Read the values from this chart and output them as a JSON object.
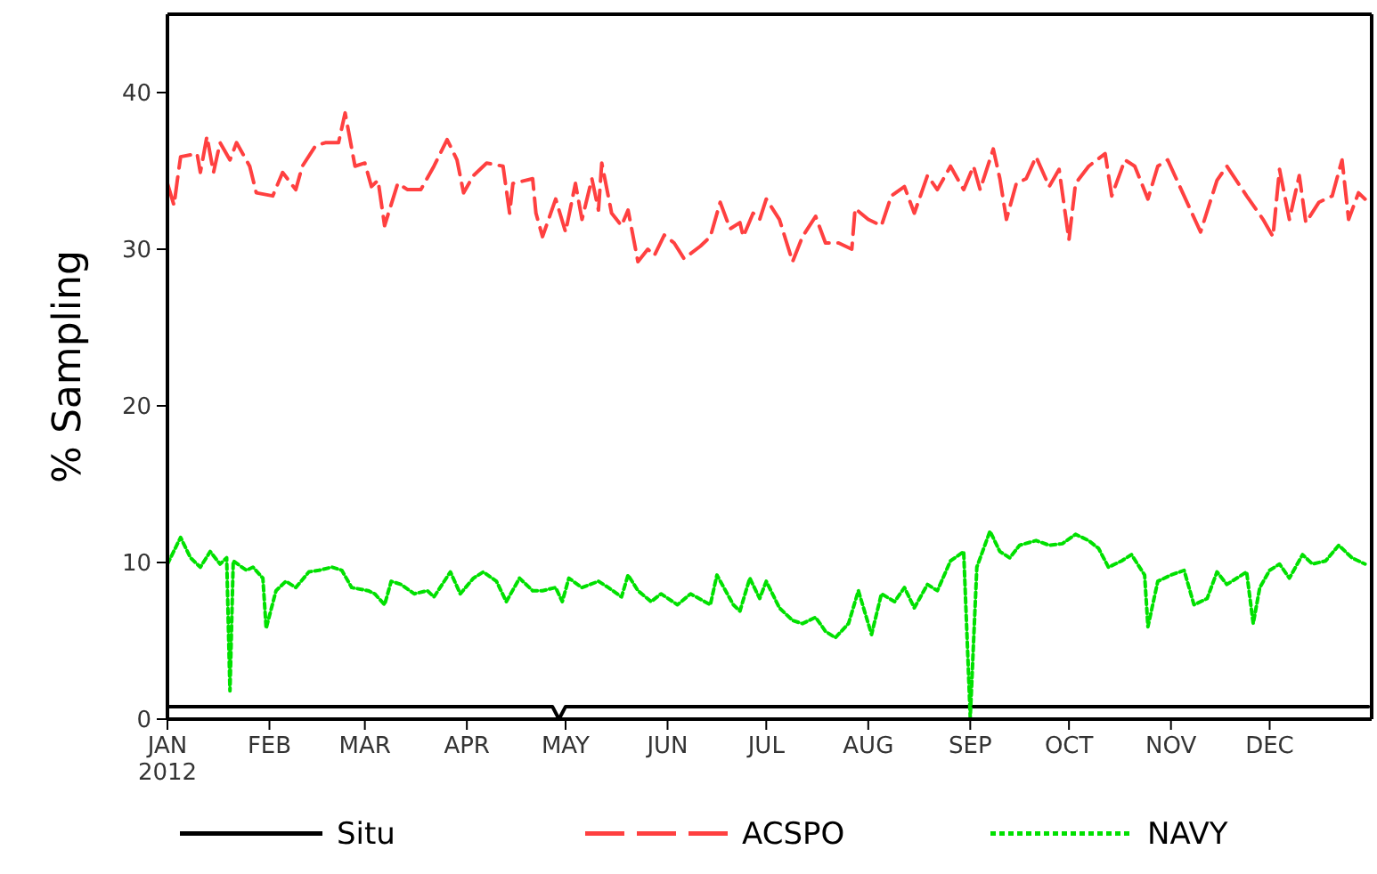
{
  "chart_data": {
    "type": "line",
    "ylabel": "% Sampling",
    "xlim": [
      "2012-01-01",
      "2013-01-01"
    ],
    "ylim": [
      0,
      45
    ],
    "yticks": [
      0,
      10,
      20,
      30,
      40
    ],
    "xticks": [
      {
        "value": "2012-01-01",
        "label": "JAN\n2012"
      },
      {
        "value": "2012-02-01",
        "label": "FEB"
      },
      {
        "value": "2012-03-01",
        "label": "MAR"
      },
      {
        "value": "2012-04-01",
        "label": "APR"
      },
      {
        "value": "2012-05-01",
        "label": "MAY"
      },
      {
        "value": "2012-06-01",
        "label": "JUN"
      },
      {
        "value": "2012-07-01",
        "label": "JUL"
      },
      {
        "value": "2012-08-01",
        "label": "AUG"
      },
      {
        "value": "2012-09-01",
        "label": "SEP"
      },
      {
        "value": "2012-10-01",
        "label": "OCT"
      },
      {
        "value": "2012-11-01",
        "label": "NOV"
      },
      {
        "value": "2012-12-01",
        "label": "DEC"
      }
    ],
    "grid": false,
    "legend": "bottom",
    "marker": "none",
    "series": [
      {
        "name": "Situ",
        "color": "#000000",
        "line_style": "solid",
        "x": [
          "2012-01-01",
          "2012-04-27",
          "2012-04-29",
          "2012-05-01",
          "2012-12-31"
        ],
        "values": [
          0.8,
          0.8,
          0,
          0.8,
          0.8
        ]
      },
      {
        "name": "ACSPO",
        "color": "#ff4040",
        "line_style": "dashed",
        "x": [
          "2012-01-01",
          "2012-01-03",
          "2012-01-04",
          "2012-01-05",
          "2012-01-10",
          "2012-01-11",
          "2012-01-13",
          "2012-01-15",
          "2012-01-17",
          "2012-01-20",
          "2012-01-22",
          "2012-01-26",
          "2012-01-28",
          "2012-02-02",
          "2012-02-05",
          "2012-02-09",
          "2012-02-11",
          "2012-02-15",
          "2012-02-18",
          "2012-02-22",
          "2012-02-24",
          "2012-02-27",
          "2012-03-01",
          "2012-03-03",
          "2012-03-05",
          "2012-03-07",
          "2012-03-11",
          "2012-03-14",
          "2012-03-18",
          "2012-03-22",
          "2012-03-26",
          "2012-03-29",
          "2012-03-31",
          "2012-04-03",
          "2012-04-07",
          "2012-04-12",
          "2012-04-14",
          "2012-04-15",
          "2012-04-21",
          "2012-04-22",
          "2012-04-24",
          "2012-04-28",
          "2012-05-01",
          "2012-05-04",
          "2012-05-06",
          "2012-05-09",
          "2012-05-11",
          "2012-05-12",
          "2012-05-15",
          "2012-05-18",
          "2012-05-20",
          "2012-05-23",
          "2012-05-26",
          "2012-05-28",
          "2012-05-31",
          "2012-06-03",
          "2012-06-06",
          "2012-06-11",
          "2012-06-14",
          "2012-06-17",
          "2012-06-20",
          "2012-06-23",
          "2012-06-24",
          "2012-06-27",
          "2012-06-29",
          "2012-07-01",
          "2012-07-05",
          "2012-07-09",
          "2012-07-12",
          "2012-07-16",
          "2012-07-19",
          "2012-07-23",
          "2012-07-27",
          "2012-07-28",
          "2012-08-01",
          "2012-08-05",
          "2012-08-08",
          "2012-08-12",
          "2012-08-15",
          "2012-08-19",
          "2012-08-22",
          "2012-08-26",
          "2012-08-30",
          "2012-09-02",
          "2012-09-04",
          "2012-09-08",
          "2012-09-10",
          "2012-09-12",
          "2012-09-15",
          "2012-09-18",
          "2012-09-21",
          "2012-09-25",
          "2012-09-28",
          "2012-10-01",
          "2012-10-03",
          "2012-10-07",
          "2012-10-12",
          "2012-10-14",
          "2012-10-18",
          "2012-10-21",
          "2012-10-25",
          "2012-10-28",
          "2012-10-31",
          "2012-11-05",
          "2012-11-10",
          "2012-11-15",
          "2012-11-18",
          "2012-11-24",
          "2012-11-29",
          "2012-12-02",
          "2012-12-04",
          "2012-12-07",
          "2012-12-10",
          "2012-12-12",
          "2012-12-16",
          "2012-12-20",
          "2012-12-23",
          "2012-12-25",
          "2012-12-28",
          "2012-12-30"
        ],
        "values": [
          34.2,
          32.8,
          34.4,
          35.9,
          36.1,
          34.9,
          37.2,
          34.9,
          36.8,
          35.7,
          36.8,
          35.3,
          33.6,
          33.4,
          34.9,
          33.8,
          35.3,
          36.6,
          36.8,
          36.8,
          38.7,
          35.3,
          35.5,
          34,
          34.4,
          31.5,
          34.2,
          33.8,
          33.8,
          35.3,
          37,
          35.7,
          33.6,
          34.7,
          35.5,
          35.3,
          32.3,
          34.2,
          34.5,
          32.3,
          30.8,
          33.2,
          31.1,
          34.2,
          31.9,
          34.5,
          32.5,
          35.5,
          32.3,
          31.5,
          32.5,
          29.2,
          30,
          29.6,
          30.9,
          30.4,
          29.4,
          30.2,
          30.8,
          33,
          31.3,
          31.7,
          30.8,
          32.3,
          31.9,
          33.2,
          31.9,
          29.2,
          30.8,
          32.1,
          30.4,
          30.4,
          30,
          32.6,
          31.9,
          31.5,
          33.4,
          34,
          32.3,
          34.7,
          33.8,
          35.3,
          33.8,
          35.3,
          33.8,
          36.4,
          34.5,
          31.9,
          34.2,
          34.5,
          35.9,
          34,
          35.1,
          30.6,
          34.2,
          35.3,
          36.1,
          33.4,
          35.7,
          35.3,
          33.2,
          35.3,
          35.7,
          33.4,
          31.1,
          34.4,
          35.3,
          33.4,
          31.9,
          30.8,
          35.1,
          31.9,
          34.7,
          31.7,
          33,
          33.4,
          35.7,
          31.9,
          33.6,
          33.2
        ]
      },
      {
        "name": "NAVY",
        "color": "#00e000",
        "line_style": "dotted",
        "x": [
          "2012-01-01",
          "2012-01-05",
          "2012-01-08",
          "2012-01-11",
          "2012-01-14",
          "2012-01-17",
          "2012-01-19",
          "2012-01-20",
          "2012-01-21",
          "2012-01-25",
          "2012-01-27",
          "2012-01-30",
          "2012-01-31",
          "2012-02-03",
          "2012-02-06",
          "2012-02-09",
          "2012-02-13",
          "2012-02-16",
          "2012-02-20",
          "2012-02-23",
          "2012-02-26",
          "2012-03-02",
          "2012-03-04",
          "2012-03-07",
          "2012-03-09",
          "2012-03-12",
          "2012-03-16",
          "2012-03-20",
          "2012-03-22",
          "2012-03-27",
          "2012-03-30",
          "2012-04-03",
          "2012-04-06",
          "2012-04-10",
          "2012-04-13",
          "2012-04-17",
          "2012-04-21",
          "2012-04-24",
          "2012-04-28",
          "2012-04-30",
          "2012-05-02",
          "2012-05-06",
          "2012-05-11",
          "2012-05-14",
          "2012-05-18",
          "2012-05-20",
          "2012-05-23",
          "2012-05-27",
          "2012-05-30",
          "2012-06-04",
          "2012-06-08",
          "2012-06-14",
          "2012-06-16",
          "2012-06-21",
          "2012-06-23",
          "2012-06-26",
          "2012-06-29",
          "2012-07-01",
          "2012-07-05",
          "2012-07-09",
          "2012-07-12",
          "2012-07-16",
          "2012-07-19",
          "2012-07-22",
          "2012-07-26",
          "2012-07-29",
          "2012-08-02",
          "2012-08-05",
          "2012-08-09",
          "2012-08-12",
          "2012-08-15",
          "2012-08-19",
          "2012-08-22",
          "2012-08-26",
          "2012-08-30",
          "2012-09-01",
          "2012-09-03",
          "2012-09-07",
          "2012-09-10",
          "2012-09-13",
          "2012-09-16",
          "2012-09-21",
          "2012-09-25",
          "2012-09-29",
          "2012-10-03",
          "2012-10-07",
          "2012-10-10",
          "2012-10-13",
          "2012-10-17",
          "2012-10-20",
          "2012-10-24",
          "2012-10-25",
          "2012-10-28",
          "2012-11-01",
          "2012-11-05",
          "2012-11-08",
          "2012-11-12",
          "2012-11-15",
          "2012-11-18",
          "2012-11-24",
          "2012-11-26",
          "2012-11-28",
          "2012-12-01",
          "2012-12-04",
          "2012-12-07",
          "2012-12-11",
          "2012-12-14",
          "2012-12-18",
          "2012-12-22",
          "2012-12-26",
          "2012-12-30"
        ],
        "values": [
          9.9,
          11.6,
          10.3,
          9.7,
          10.7,
          9.9,
          10.3,
          1.8,
          10.1,
          9.5,
          9.7,
          9,
          5.8,
          8.2,
          8.8,
          8.4,
          9.4,
          9.5,
          9.7,
          9.5,
          8.4,
          8.2,
          8,
          7.3,
          8.8,
          8.6,
          8,
          8.2,
          7.8,
          9.4,
          8,
          9,
          9.4,
          8.8,
          7.5,
          9,
          8.2,
          8.2,
          8.4,
          7.5,
          9,
          8.4,
          8.8,
          8.4,
          7.8,
          9.2,
          8.2,
          7.5,
          8,
          7.3,
          8,
          7.3,
          9.2,
          7.3,
          6.9,
          9,
          7.7,
          8.8,
          7.1,
          6.3,
          6.1,
          6.5,
          5.6,
          5.2,
          6.1,
          8.2,
          5.4,
          8,
          7.5,
          8.4,
          7.1,
          8.6,
          8.2,
          10.1,
          10.7,
          0.1,
          9.7,
          12,
          10.7,
          10.3,
          11.1,
          11.4,
          11.1,
          11.2,
          11.8,
          11.4,
          10.9,
          9.7,
          10.1,
          10.5,
          9.2,
          5.9,
          8.8,
          9.2,
          9.5,
          7.3,
          7.7,
          9.4,
          8.6,
          9.4,
          6.1,
          8.4,
          9.5,
          9.9,
          9,
          10.5,
          9.9,
          10.1,
          11.1,
          10.3,
          9.9
        ]
      }
    ]
  }
}
